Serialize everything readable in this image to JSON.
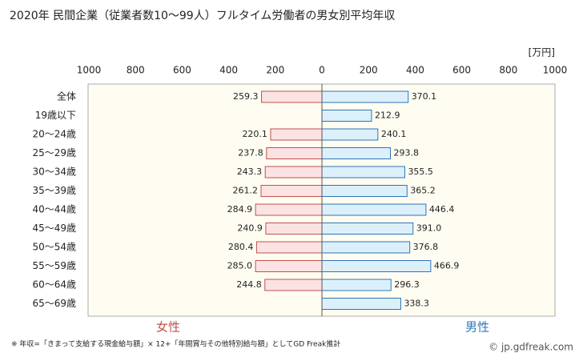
{
  "chart_data": {
    "type": "butterfly",
    "title": "2020年 民間企業（従業者数10～99人）フルタイム労働者の男女別平均年収",
    "unit": "[万円]",
    "categories": [
      "全体",
      "19歳以下",
      "20～24歳",
      "25～29歳",
      "30～34歳",
      "35～39歳",
      "40～44歳",
      "45～49歳",
      "50～54歳",
      "55～59歳",
      "60～64歳",
      "65～69歳"
    ],
    "series": [
      {
        "name": "女性",
        "color": "#fbe3e3",
        "edge": "#c0504d",
        "text_color": "#c0504d",
        "values": [
          259.3,
          null,
          220.1,
          237.8,
          243.3,
          261.2,
          284.9,
          240.9,
          280.4,
          285,
          244.8,
          null
        ],
        "value_labels": [
          "259.3",
          null,
          "220.1",
          "237.8",
          "243.3",
          "261.2",
          "284.9",
          "240.9",
          "280.4",
          "285.0",
          "244.8",
          null
        ]
      },
      {
        "name": "男性",
        "color": "#dcf0fb",
        "edge": "#2e75b6",
        "text_color": "#2e75b6",
        "values": [
          370.1,
          212.9,
          240.1,
          293.8,
          355.5,
          365.2,
          446.4,
          391,
          376.8,
          466.9,
          296.3,
          338.3
        ],
        "value_labels": [
          "370.1",
          "212.9",
          "240.1",
          "293.8",
          "355.5",
          "365.2",
          "446.4",
          "391.0",
          "376.8",
          "466.9",
          "296.3",
          "338.3"
        ]
      }
    ],
    "xlim": [
      0,
      1000
    ],
    "xticks": [
      0,
      200,
      400,
      600,
      800,
      1000
    ],
    "grid": false,
    "footnote": "※ 年収=「きまって支給する現金給与額」× 12+「年間賞与その他特別給与額」としてGD Freak推計",
    "credit": "© jp.gdfreak.com"
  }
}
